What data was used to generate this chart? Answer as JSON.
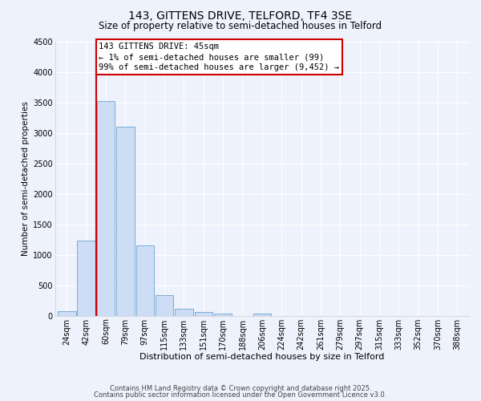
{
  "title": "143, GITTENS DRIVE, TELFORD, TF4 3SE",
  "subtitle": "Size of property relative to semi-detached houses in Telford",
  "xlabel": "Distribution of semi-detached houses by size in Telford",
  "ylabel": "Number of semi-detached properties",
  "bin_labels": [
    "24sqm",
    "42sqm",
    "60sqm",
    "79sqm",
    "97sqm",
    "115sqm",
    "133sqm",
    "151sqm",
    "170sqm",
    "188sqm",
    "206sqm",
    "224sqm",
    "242sqm",
    "261sqm",
    "279sqm",
    "297sqm",
    "315sqm",
    "333sqm",
    "352sqm",
    "370sqm",
    "388sqm"
  ],
  "bar_values": [
    75,
    1230,
    3520,
    3100,
    1150,
    340,
    120,
    65,
    40,
    0,
    35,
    0,
    0,
    0,
    0,
    0,
    0,
    0,
    0,
    0,
    0
  ],
  "bar_color": "#ccddf5",
  "bar_edge_color": "#7aadd4",
  "vline_color": "#cc0000",
  "vline_pos": 1.5,
  "ylim": [
    0,
    4500
  ],
  "yticks": [
    0,
    500,
    1000,
    1500,
    2000,
    2500,
    3000,
    3500,
    4000,
    4500
  ],
  "annotation_title": "143 GITTENS DRIVE: 45sqm",
  "annotation_line1": "← 1% of semi-detached houses are smaller (99)",
  "annotation_line2": "99% of semi-detached houses are larger (9,452) →",
  "annotation_box_facecolor": "#ffffff",
  "annotation_box_edgecolor": "#cc0000",
  "footer1": "Contains HM Land Registry data © Crown copyright and database right 2025.",
  "footer2": "Contains public sector information licensed under the Open Government Licence v3.0.",
  "bg_color": "#eef2fc",
  "grid_color": "#ffffff",
  "title_fontsize": 10,
  "subtitle_fontsize": 8.5,
  "xlabel_fontsize": 8,
  "ylabel_fontsize": 7.5,
  "tick_fontsize": 7,
  "footer_fontsize": 6,
  "ann_fontsize": 7.5
}
